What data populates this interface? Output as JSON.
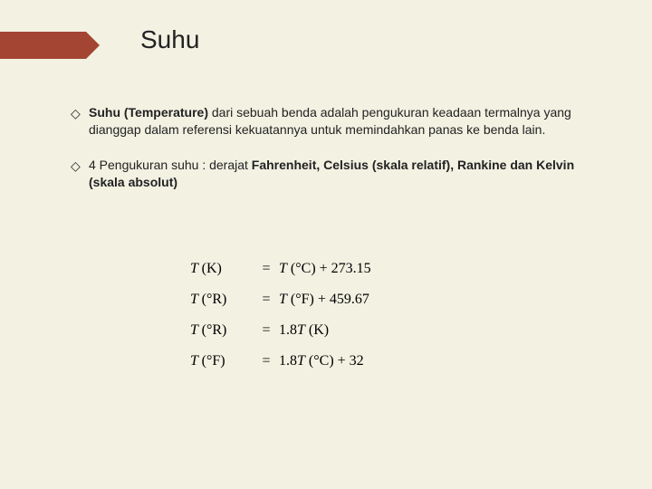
{
  "accent_color": "#a44432",
  "background_color": "#f2f1e2",
  "title": "Suhu",
  "bullets": [
    {
      "marker": "◇",
      "lead_bold": "Suhu (Temperature)",
      "rest": " dari sebuah benda adalah pengukuran keadaan termalnya yang dianggap dalam referensi kekuatannya untuk memindahkan panas ke benda lain."
    },
    {
      "marker": "◇",
      "plain1": "4 Pengukuran suhu : derajat ",
      "bold1": "Fahrenheit, Celsius (skala relatif), Rankine dan Kelvin (skala absolut)"
    }
  ],
  "formulas": [
    {
      "left_unit": "K",
      "rhs_prefix": "",
      "rhs_unit": "°C",
      "rhs_suffix": " + 273.15"
    },
    {
      "left_unit": "°R",
      "rhs_prefix": "",
      "rhs_unit": "°F",
      "rhs_suffix": " + 459.67"
    },
    {
      "left_unit": "°R",
      "rhs_prefix": "1.8",
      "rhs_unit": "K",
      "rhs_suffix": ""
    },
    {
      "left_unit": "°F",
      "rhs_prefix": "1.8",
      "rhs_unit": "°C",
      "rhs_suffix": " + 32"
    }
  ]
}
